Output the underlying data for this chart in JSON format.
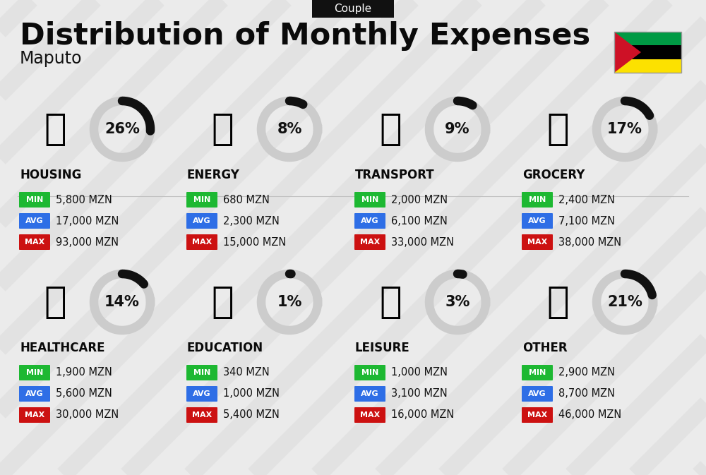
{
  "title": "Distribution of Monthly Expenses",
  "subtitle": "Couple",
  "city": "Maputo",
  "background_color": "#ebebeb",
  "categories": [
    {
      "name": "HOUSING",
      "pct": 26,
      "min": "5,800 MZN",
      "avg": "17,000 MZN",
      "max": "93,000 MZN",
      "row": 0,
      "col": 0
    },
    {
      "name": "ENERGY",
      "pct": 8,
      "min": "680 MZN",
      "avg": "2,300 MZN",
      "max": "15,000 MZN",
      "row": 0,
      "col": 1
    },
    {
      "name": "TRANSPORT",
      "pct": 9,
      "min": "2,000 MZN",
      "avg": "6,100 MZN",
      "max": "33,000 MZN",
      "row": 0,
      "col": 2
    },
    {
      "name": "GROCERY",
      "pct": 17,
      "min": "2,400 MZN",
      "avg": "7,100 MZN",
      "max": "38,000 MZN",
      "row": 0,
      "col": 3
    },
    {
      "name": "HEALTHCARE",
      "pct": 14,
      "min": "1,900 MZN",
      "avg": "5,600 MZN",
      "max": "30,000 MZN",
      "row": 1,
      "col": 0
    },
    {
      "name": "EDUCATION",
      "pct": 1,
      "min": "340 MZN",
      "avg": "1,000 MZN",
      "max": "5,400 MZN",
      "row": 1,
      "col": 1
    },
    {
      "name": "LEISURE",
      "pct": 3,
      "min": "1,000 MZN",
      "avg": "3,100 MZN",
      "max": "16,000 MZN",
      "row": 1,
      "col": 2
    },
    {
      "name": "OTHER",
      "pct": 21,
      "min": "2,900 MZN",
      "avg": "8,700 MZN",
      "max": "46,000 MZN",
      "row": 1,
      "col": 3
    }
  ],
  "min_color": "#1db832",
  "avg_color": "#2e6ee6",
  "max_color": "#cc1111",
  "donut_black": "#111111",
  "donut_gray": "#cccccc",
  "subtitle_bg": "#111111",
  "subtitle_fg": "#ffffff",
  "stripe_color": "#d0d0d0",
  "flag_green": "#009A44",
  "flag_black": "#000000",
  "flag_yellow": "#FCE100",
  "flag_red": "#CE1126"
}
